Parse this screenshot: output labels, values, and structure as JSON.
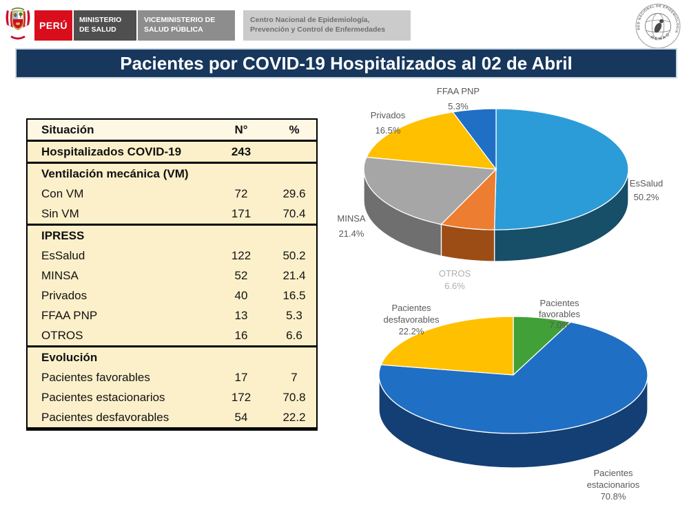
{
  "header": {
    "country_label": "PERÚ",
    "ministry": [
      "MINISTERIO",
      "DE SALUD"
    ],
    "viceministry": [
      "VICEMINISTERIO DE",
      "SALUD PÚBLICA"
    ],
    "center": [
      "Centro Nacional de Epidemiología,",
      "Prevención y Control de Enfermedades"
    ],
    "logo_ring_text": "RED NACIONAL DE EPIDEMIOLOGIA",
    "logo_bottom_text": "RENACE"
  },
  "title": "Pacientes por COVID-19 Hospitalizados al 02 de Abril",
  "colors": {
    "title_bar": "#17375D",
    "peru_red": "#D90E1C",
    "table_bg": "#FBF0CA"
  },
  "table": {
    "columns": [
      "Situación",
      "N°",
      "%"
    ],
    "rows": [
      {
        "label": "Hospitalizados COVID-19",
        "n": "243",
        "pct": "",
        "style": "total"
      },
      {
        "label": "Ventilación mecánica (VM)",
        "n": "",
        "pct": "",
        "style": "section"
      },
      {
        "label": "Con VM",
        "n": "72",
        "pct": "29.6",
        "style": ""
      },
      {
        "label": "Sin VM",
        "n": "171",
        "pct": "70.4",
        "style": "end"
      },
      {
        "label": "IPRESS",
        "n": "",
        "pct": "",
        "style": "section"
      },
      {
        "label": "EsSalud",
        "n": "122",
        "pct": "50.2",
        "style": ""
      },
      {
        "label": "MINSA",
        "n": "52",
        "pct": "21.4",
        "style": ""
      },
      {
        "label": "Privados",
        "n": "40",
        "pct": "16.5",
        "style": ""
      },
      {
        "label": "FFAA PNP",
        "n": "13",
        "pct": "5.3",
        "style": ""
      },
      {
        "label": "OTROS",
        "n": "16",
        "pct": "6.6",
        "style": "end"
      },
      {
        "label": "Evolución",
        "n": "",
        "pct": "",
        "style": "section"
      },
      {
        "label": "Pacientes favorables",
        "n": "17",
        "pct": "7",
        "style": ""
      },
      {
        "label": "Pacientes estacionarios",
        "n": "172",
        "pct": "70.8",
        "style": ""
      },
      {
        "label": "Pacientes desfavorables",
        "n": "54",
        "pct": "22.2",
        "style": "end"
      }
    ]
  },
  "chart_data": [
    {
      "type": "pie",
      "name": "ipress-pie",
      "title": "",
      "effect": "3d",
      "start_angle_deg": 0,
      "clockwise": true,
      "labels": [
        "EsSalud",
        "OTROS",
        "MINSA",
        "Privados",
        "FFAA PNP"
      ],
      "label_lines": [
        [
          "EsSalud"
        ],
        [
          "OTROS"
        ],
        [
          "MINSA"
        ],
        [
          "Privados"
        ],
        [
          "FFAA PNP"
        ]
      ],
      "values": [
        50.2,
        6.6,
        21.4,
        16.5,
        5.3
      ],
      "pct_labels": [
        "50.2%",
        "6.6%",
        "21.4%",
        "16.5%",
        "5.3%"
      ],
      "counts": [
        122,
        16,
        52,
        40,
        13
      ],
      "colors": [
        "#2B9CD8",
        "#ED7D31",
        "#A6A6A6",
        "#FFC000",
        "#1F6FC5"
      ],
      "side_colors": [
        "#174E68",
        "#9C4D15",
        "#6F6F6F",
        "#9E7700",
        "#124B86"
      ]
    },
    {
      "type": "pie",
      "name": "evolucion-pie",
      "title": "",
      "effect": "3d",
      "start_angle_deg": 0,
      "clockwise": true,
      "labels": [
        "Pacientes favorables",
        "Pacientes estacionarios",
        "Pacientes desfavorables"
      ],
      "label_lines": [
        [
          "Pacientes",
          "favorables"
        ],
        [
          "Pacientes",
          "estacionarios"
        ],
        [
          "Pacientes",
          "desfavorables"
        ]
      ],
      "values": [
        7.0,
        70.8,
        22.2
      ],
      "pct_labels": [
        "7.0%",
        "70.8%",
        "22.2%"
      ],
      "counts": [
        17,
        172,
        54
      ],
      "colors": [
        "#41A037",
        "#1F6FC4",
        "#FFC000"
      ],
      "side_colors": [
        "#27611F",
        "#133F74",
        "#9E7700"
      ]
    }
  ]
}
